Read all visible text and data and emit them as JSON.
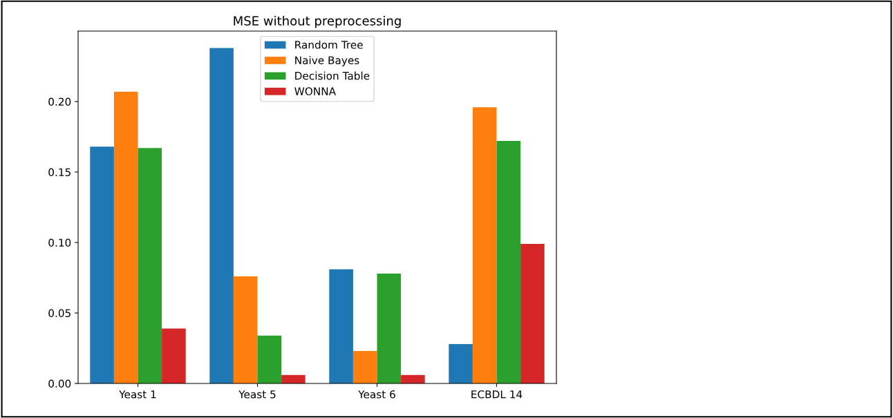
{
  "chart_data": {
    "type": "bar",
    "title": "MSE without preprocessing",
    "categories": [
      "Yeast 1",
      "Yeast 5",
      "Yeast 6",
      "ECBDL 14"
    ],
    "series": [
      {
        "name": "Random Tree",
        "color": "#1f77b4",
        "values": [
          0.168,
          0.238,
          0.081,
          0.028
        ]
      },
      {
        "name": "Naive Bayes",
        "color": "#ff7f0e",
        "values": [
          0.207,
          0.076,
          0.023,
          0.196
        ]
      },
      {
        "name": "Decision Table",
        "color": "#2ca02c",
        "values": [
          0.167,
          0.034,
          0.078,
          0.172
        ]
      },
      {
        "name": "WONNA",
        "color": "#d62728",
        "values": [
          0.039,
          0.006,
          0.006,
          0.099
        ]
      }
    ],
    "ylim": [
      0,
      0.25
    ],
    "yticks": [
      {
        "value": 0,
        "label": "0.00"
      },
      {
        "value": 0.05,
        "label": "0.05"
      },
      {
        "value": 0.1,
        "label": "0.10"
      },
      {
        "value": 0.15,
        "label": "0.15"
      },
      {
        "value": 0.2,
        "label": "0.20"
      }
    ],
    "grid": false,
    "legend": "top center"
  }
}
